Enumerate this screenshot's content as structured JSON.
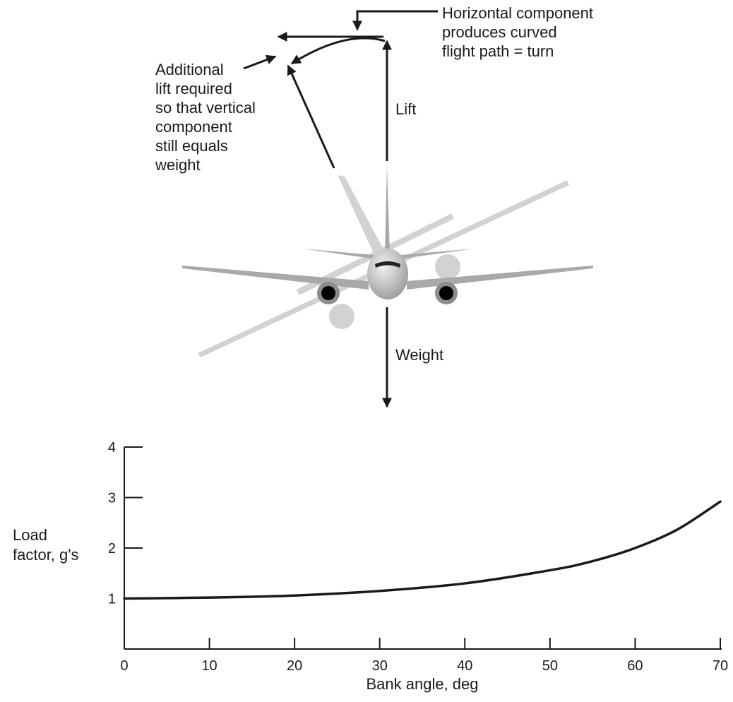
{
  "diagram": {
    "horizontal_note": [
      "Horizontal component",
      "produces curved",
      "flight path = turn"
    ],
    "additional_note": [
      "Additional",
      "lift required",
      "so that vertical",
      "component",
      "still equals",
      "weight"
    ],
    "lift_label": "Lift",
    "weight_label": "Weight",
    "colors": {
      "ink": "#1a1a1a",
      "plane_light": "#d0d0d0",
      "plane_mid": "#a6a6a6",
      "engine_core": "#000000"
    }
  },
  "chart_data": {
    "type": "line",
    "title": "",
    "xlabel": "Bank angle, deg",
    "ylabel": [
      "Load",
      "factor, g's"
    ],
    "xlim": [
      0,
      70
    ],
    "ylim": [
      0,
      4
    ],
    "x_ticks": [
      0,
      10,
      20,
      30,
      40,
      50,
      60,
      70
    ],
    "y_ticks": [
      1,
      2,
      3,
      4
    ],
    "grid": false,
    "series": [
      {
        "x": [
          0,
          10,
          20,
          30,
          40,
          50,
          55,
          60,
          65,
          70
        ],
        "values": [
          1.0,
          1.02,
          1.06,
          1.15,
          1.3,
          1.56,
          1.74,
          2.0,
          2.37,
          2.92
        ]
      }
    ]
  }
}
